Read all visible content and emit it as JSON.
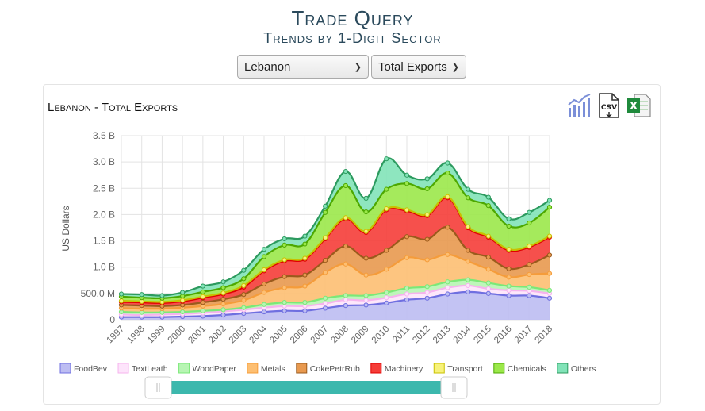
{
  "header": {
    "title": "Trade Query",
    "subtitle": "Trends by 1-Digit Sector"
  },
  "filters": {
    "country": "Lebanon",
    "flow": "Total Exports"
  },
  "tools": [
    "chart-icon",
    "csv-download-icon",
    "excel-download-icon"
  ],
  "chart_data": {
    "type": "area",
    "stacked": true,
    "title": "Lebanon - Total Exports",
    "ylabel": "US Dollars",
    "xlabel": "",
    "ylim": [
      0,
      3500000000
    ],
    "yticks": [
      0,
      500000000,
      1000000000,
      1500000000,
      2000000000,
      2500000000,
      3000000000,
      3500000000
    ],
    "ytick_labels": [
      "0",
      "500.0 M",
      "1.0 B",
      "1.5 B",
      "2.0 B",
      "2.5 B",
      "3.0 B",
      "3.5 B"
    ],
    "grid": true,
    "legend_position": "bottom",
    "x": [
      "1997",
      "1998",
      "1999",
      "2000",
      "2001",
      "2002",
      "2003",
      "2004",
      "2005",
      "2006",
      "2007",
      "2008",
      "2009",
      "2010",
      "2011",
      "2012",
      "2013",
      "2014",
      "2015",
      "2016",
      "2017",
      "2018"
    ],
    "cumulative": [
      [
        50,
        50,
        50,
        60,
        70,
        90,
        120,
        150,
        170,
        170,
        220,
        270,
        280,
        320,
        380,
        410,
        490,
        530,
        500,
        460,
        460,
        410
      ],
      [
        100,
        90,
        100,
        110,
        130,
        160,
        190,
        230,
        260,
        260,
        310,
        380,
        370,
        420,
        490,
        520,
        610,
        650,
        590,
        560,
        550,
        500
      ],
      [
        150,
        140,
        140,
        150,
        170,
        190,
        230,
        290,
        330,
        330,
        410,
        460,
        460,
        520,
        600,
        630,
        720,
        760,
        700,
        640,
        620,
        560
      ],
      [
        220,
        210,
        210,
        230,
        260,
        300,
        370,
        520,
        610,
        640,
        900,
        1060,
        850,
        960,
        1180,
        1140,
        1240,
        1110,
        960,
        810,
        860,
        880
      ],
      [
        280,
        270,
        260,
        280,
        330,
        390,
        480,
        680,
        820,
        850,
        1130,
        1400,
        1170,
        1320,
        1580,
        1530,
        1760,
        1320,
        1190,
        970,
        1050,
        1230
      ],
      [
        340,
        330,
        320,
        350,
        420,
        490,
        620,
        930,
        1120,
        1150,
        1540,
        1920,
        1660,
        2090,
        2070,
        1980,
        2320,
        1750,
        1570,
        1320,
        1380,
        1570
      ],
      [
        360,
        350,
        340,
        370,
        440,
        510,
        650,
        950,
        1140,
        1170,
        1560,
        1940,
        1680,
        2110,
        2090,
        2000,
        2340,
        1770,
        1590,
        1340,
        1400,
        1590
      ],
      [
        440,
        420,
        410,
        450,
        530,
        610,
        780,
        1200,
        1420,
        1440,
        2040,
        2550,
        2050,
        2480,
        2590,
        2490,
        2790,
        2320,
        2170,
        1780,
        1840,
        2140
      ],
      [
        490,
        480,
        460,
        520,
        640,
        720,
        940,
        1340,
        1540,
        1590,
        2160,
        2820,
        2310,
        3060,
        2750,
        2680,
        2980,
        2480,
        2330,
        1920,
        2040,
        2270
      ]
    ],
    "cumulative_unit": "millions USD",
    "series": [
      {
        "name": "FoodBev",
        "color": "#bdbdf2",
        "line": "#6f6fe0"
      },
      {
        "name": "TextLeath",
        "color": "#fde4fb",
        "line": "#f6b3ee"
      },
      {
        "name": "WoodPaper",
        "color": "#b7f5b3",
        "line": "#7be878"
      },
      {
        "name": "Metals",
        "color": "#fdbf72",
        "line": "#f59c3a"
      },
      {
        "name": "CokePetrRub",
        "color": "#e8994f",
        "line": "#9a5a1c"
      },
      {
        "name": "Machinery",
        "color": "#f53d38",
        "line": "#e00000"
      },
      {
        "name": "Transport",
        "color": "#f7f27a",
        "line": "#c8c000"
      },
      {
        "name": "Chemicals",
        "color": "#9be84a",
        "line": "#4da800"
      },
      {
        "name": "Others",
        "color": "#82e3b8",
        "line": "#2c9a5e"
      }
    ]
  }
}
